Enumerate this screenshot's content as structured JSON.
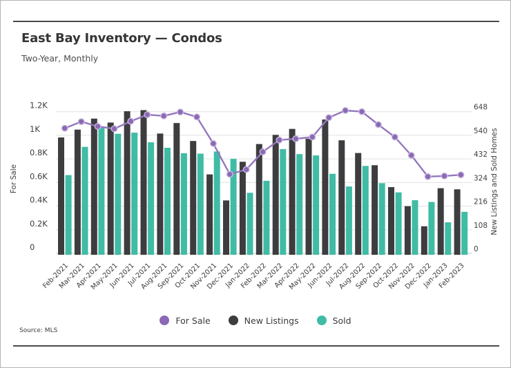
{
  "header": {
    "title": "East Bay Inventory — Condos",
    "subtitle": "Two-Year, Monthly"
  },
  "footer": {
    "source": "Source: MLS"
  },
  "legend": [
    {
      "label": "For Sale",
      "color": "#8b69b4"
    },
    {
      "label": "New Listings",
      "color": "#3d3d40"
    },
    {
      "label": "Sold",
      "color": "#40bca5"
    }
  ],
  "chart_data": {
    "type": "bar",
    "subtype": "grouped-bars-with-line-overlay",
    "title": "East Bay Inventory — Condos",
    "subtitle": "Two-Year, Monthly",
    "source": "Source: MLS",
    "grid": true,
    "legend_position": "bottom",
    "categories": [
      "Feb-2021",
      "Mar-2021",
      "Apr-2021",
      "May-2021",
      "Jun-2021",
      "Jul-2021",
      "Aug-2021",
      "Sep-2021",
      "Oct-2021",
      "Nov-2021",
      "Dec-2021",
      "Jan-2022",
      "Feb-2022",
      "Mar-2022",
      "Apr-2022",
      "May-2022",
      "Jun-2022",
      "Jul-2022",
      "Aug-2022",
      "Sep-2022",
      "Oct-2022",
      "Nov-2022",
      "Dec-2022",
      "Jan-2023",
      "Feb-2023"
    ],
    "series": [
      {
        "name": "For Sale",
        "type": "line",
        "axis": "left",
        "color": "#9477bd",
        "marker_color": "#8b69b4",
        "marker_stroke": "#cbbae1",
        "values": [
          1060,
          1115,
          1075,
          1055,
          1119,
          1174,
          1164,
          1197,
          1155,
          930,
          670,
          710,
          860,
          960,
          970,
          985,
          1150,
          1210,
          1200,
          1090,
          985,
          830,
          650,
          655,
          665
        ]
      },
      {
        "name": "New Listings",
        "type": "bar",
        "axis": "right",
        "color": "#3d3d40",
        "values": [
          530,
          566,
          616,
          598,
          650,
          655,
          548,
          596,
          514,
          361,
          242,
          419,
          500,
          542,
          569,
          524,
          612,
          517,
          459,
          403,
          303,
          216,
          124,
          298,
          293
        ]
      },
      {
        "name": "Sold",
        "type": "bar",
        "axis": "right",
        "color": "#40bca5",
        "values": [
          358,
          487,
          574,
          547,
          552,
          508,
          483,
          458,
          456,
          466,
          432,
          277,
          332,
          477,
          454,
          448,
          364,
          306,
          400,
          321,
          279,
          243,
          235,
          142,
          190
        ]
      }
    ],
    "left_axis": {
      "title": "For Sale",
      "min": 0,
      "max": 1200,
      "tick_values": [
        0,
        200,
        400,
        600,
        800,
        1000,
        1200
      ],
      "tick_labels": [
        "0",
        "0.2K",
        "0.4K",
        "0.6K",
        "0.8K",
        "1K",
        "1.2K"
      ]
    },
    "right_axis": {
      "title": "New Listings and Sold Homes",
      "min": 0,
      "max": 648,
      "tick_values": [
        0,
        108,
        216,
        324,
        432,
        540,
        648
      ],
      "tick_labels": [
        "0",
        "108",
        "216",
        "324",
        "432",
        "540",
        "648"
      ]
    }
  }
}
